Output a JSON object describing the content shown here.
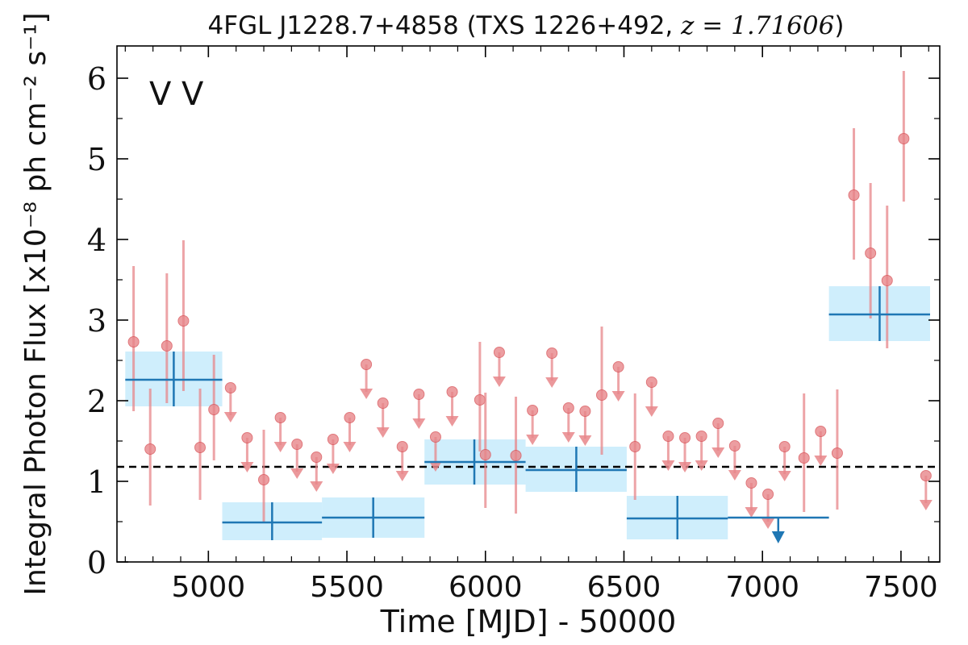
{
  "chart_data": {
    "type": "scatter",
    "title_source": "4FGL J1228.7+4858 (TXS 1226+492, ",
    "title_z": "z = 1.71606",
    "title_close": ")",
    "xlabel": "Time [MJD] - 50000",
    "ylabel": "Integral Photon Flux [x10⁻⁸ ph cm⁻² s⁻¹]",
    "xlim": [
      4670,
      7640
    ],
    "ylim": [
      0,
      6.4
    ],
    "x_ticks": [
      5000,
      5500,
      6000,
      6500,
      7000,
      7500
    ],
    "x_tick_labels": [
      "5000",
      "5500",
      "6000",
      "6500",
      "7000",
      "7500"
    ],
    "y_ticks": [
      0,
      1,
      2,
      3,
      4,
      5,
      6
    ],
    "y_tick_labels": [
      "0",
      "1",
      "2",
      "3",
      "4",
      "5",
      "6"
    ],
    "legend_labels": [
      "V",
      "V"
    ],
    "legend_colors": [
      "#1f77b4",
      "#d62728"
    ],
    "mean_flux": 1.18,
    "colors": {
      "long_bin": "#1f77b4",
      "long_band": "#bfe8fb",
      "short": "#e8868a",
      "short_edge": "#d9575c",
      "mean_line": "#000000"
    },
    "long_bins": [
      {
        "x0": 4700,
        "x1": 5050,
        "x": 4875,
        "y": 2.26,
        "lo": 1.93,
        "hi": 2.61
      },
      {
        "x0": 5050,
        "x1": 5410,
        "x": 5230,
        "y": 0.49,
        "lo": 0.27,
        "hi": 0.74
      },
      {
        "x0": 5410,
        "x1": 5780,
        "x": 5595,
        "y": 0.55,
        "lo": 0.3,
        "hi": 0.8
      },
      {
        "x0": 5780,
        "x1": 6145,
        "x": 5960,
        "y": 1.24,
        "lo": 0.96,
        "hi": 1.52
      },
      {
        "x0": 6145,
        "x1": 6510,
        "x": 6328,
        "y": 1.14,
        "lo": 0.87,
        "hi": 1.43
      },
      {
        "x0": 6510,
        "x1": 6875,
        "x": 6693,
        "y": 0.54,
        "lo": 0.28,
        "hi": 0.82
      },
      {
        "x0": 7240,
        "x1": 7605,
        "x": 7423,
        "y": 3.07,
        "lo": 2.74,
        "hi": 3.42
      }
    ],
    "long_upper_limits": [
      {
        "x0": 6875,
        "x1": 7240,
        "x": 7057,
        "y": 0.55
      }
    ],
    "short_points": [
      {
        "x": 4730,
        "y": 2.73,
        "lo": 1.87,
        "hi": 3.67
      },
      {
        "x": 4790,
        "y": 1.4,
        "lo": 0.7,
        "hi": 2.15
      },
      {
        "x": 4850,
        "y": 2.68,
        "lo": 1.97,
        "hi": 3.58
      },
      {
        "x": 4910,
        "y": 2.99,
        "lo": 2.12,
        "hi": 3.99
      },
      {
        "x": 4970,
        "y": 1.42,
        "lo": 0.77,
        "hi": 2.15
      },
      {
        "x": 5020,
        "y": 1.89,
        "lo": 1.26,
        "hi": 2.57
      },
      {
        "x": 5200,
        "y": 1.02,
        "lo": 0.49,
        "hi": 1.64
      },
      {
        "x": 5980,
        "y": 2.01,
        "lo": 1.37,
        "hi": 2.73
      },
      {
        "x": 6000,
        "y": 1.33,
        "lo": 0.67,
        "hi": 2.1
      },
      {
        "x": 6110,
        "y": 1.32,
        "lo": 0.6,
        "hi": 2.05
      },
      {
        "x": 6420,
        "y": 2.07,
        "lo": 1.33,
        "hi": 2.92
      },
      {
        "x": 6540,
        "y": 1.43,
        "lo": 0.77,
        "hi": 2.09
      },
      {
        "x": 7150,
        "y": 1.29,
        "lo": 0.62,
        "hi": 2.09
      },
      {
        "x": 7270,
        "y": 1.35,
        "lo": 0.65,
        "hi": 2.14
      },
      {
        "x": 7330,
        "y": 4.55,
        "lo": 3.75,
        "hi": 5.38
      },
      {
        "x": 7390,
        "y": 3.83,
        "lo": 3.02,
        "hi": 4.7
      },
      {
        "x": 7450,
        "y": 3.49,
        "lo": 2.65,
        "hi": 4.42
      },
      {
        "x": 7510,
        "y": 5.25,
        "lo": 4.47,
        "hi": 6.09
      }
    ],
    "short_upper_limits": [
      {
        "x": 5080,
        "y": 2.16
      },
      {
        "x": 5140,
        "y": 1.54
      },
      {
        "x": 5260,
        "y": 1.79
      },
      {
        "x": 5320,
        "y": 1.46
      },
      {
        "x": 5390,
        "y": 1.3
      },
      {
        "x": 5450,
        "y": 1.52
      },
      {
        "x": 5510,
        "y": 1.79
      },
      {
        "x": 5570,
        "y": 2.45
      },
      {
        "x": 5630,
        "y": 1.97
      },
      {
        "x": 5700,
        "y": 1.43
      },
      {
        "x": 5760,
        "y": 2.08
      },
      {
        "x": 5820,
        "y": 1.55
      },
      {
        "x": 5880,
        "y": 2.11
      },
      {
        "x": 6050,
        "y": 2.6
      },
      {
        "x": 6170,
        "y": 1.88
      },
      {
        "x": 6240,
        "y": 2.59
      },
      {
        "x": 6300,
        "y": 1.91
      },
      {
        "x": 6360,
        "y": 1.87
      },
      {
        "x": 6480,
        "y": 2.42
      },
      {
        "x": 6600,
        "y": 2.23
      },
      {
        "x": 6660,
        "y": 1.56
      },
      {
        "x": 6720,
        "y": 1.54
      },
      {
        "x": 6780,
        "y": 1.56
      },
      {
        "x": 6840,
        "y": 1.72
      },
      {
        "x": 6900,
        "y": 1.44
      },
      {
        "x": 6960,
        "y": 0.98
      },
      {
        "x": 7020,
        "y": 0.84
      },
      {
        "x": 7080,
        "y": 1.43
      },
      {
        "x": 7210,
        "y": 1.62
      },
      {
        "x": 7590,
        "y": 1.07
      }
    ]
  }
}
